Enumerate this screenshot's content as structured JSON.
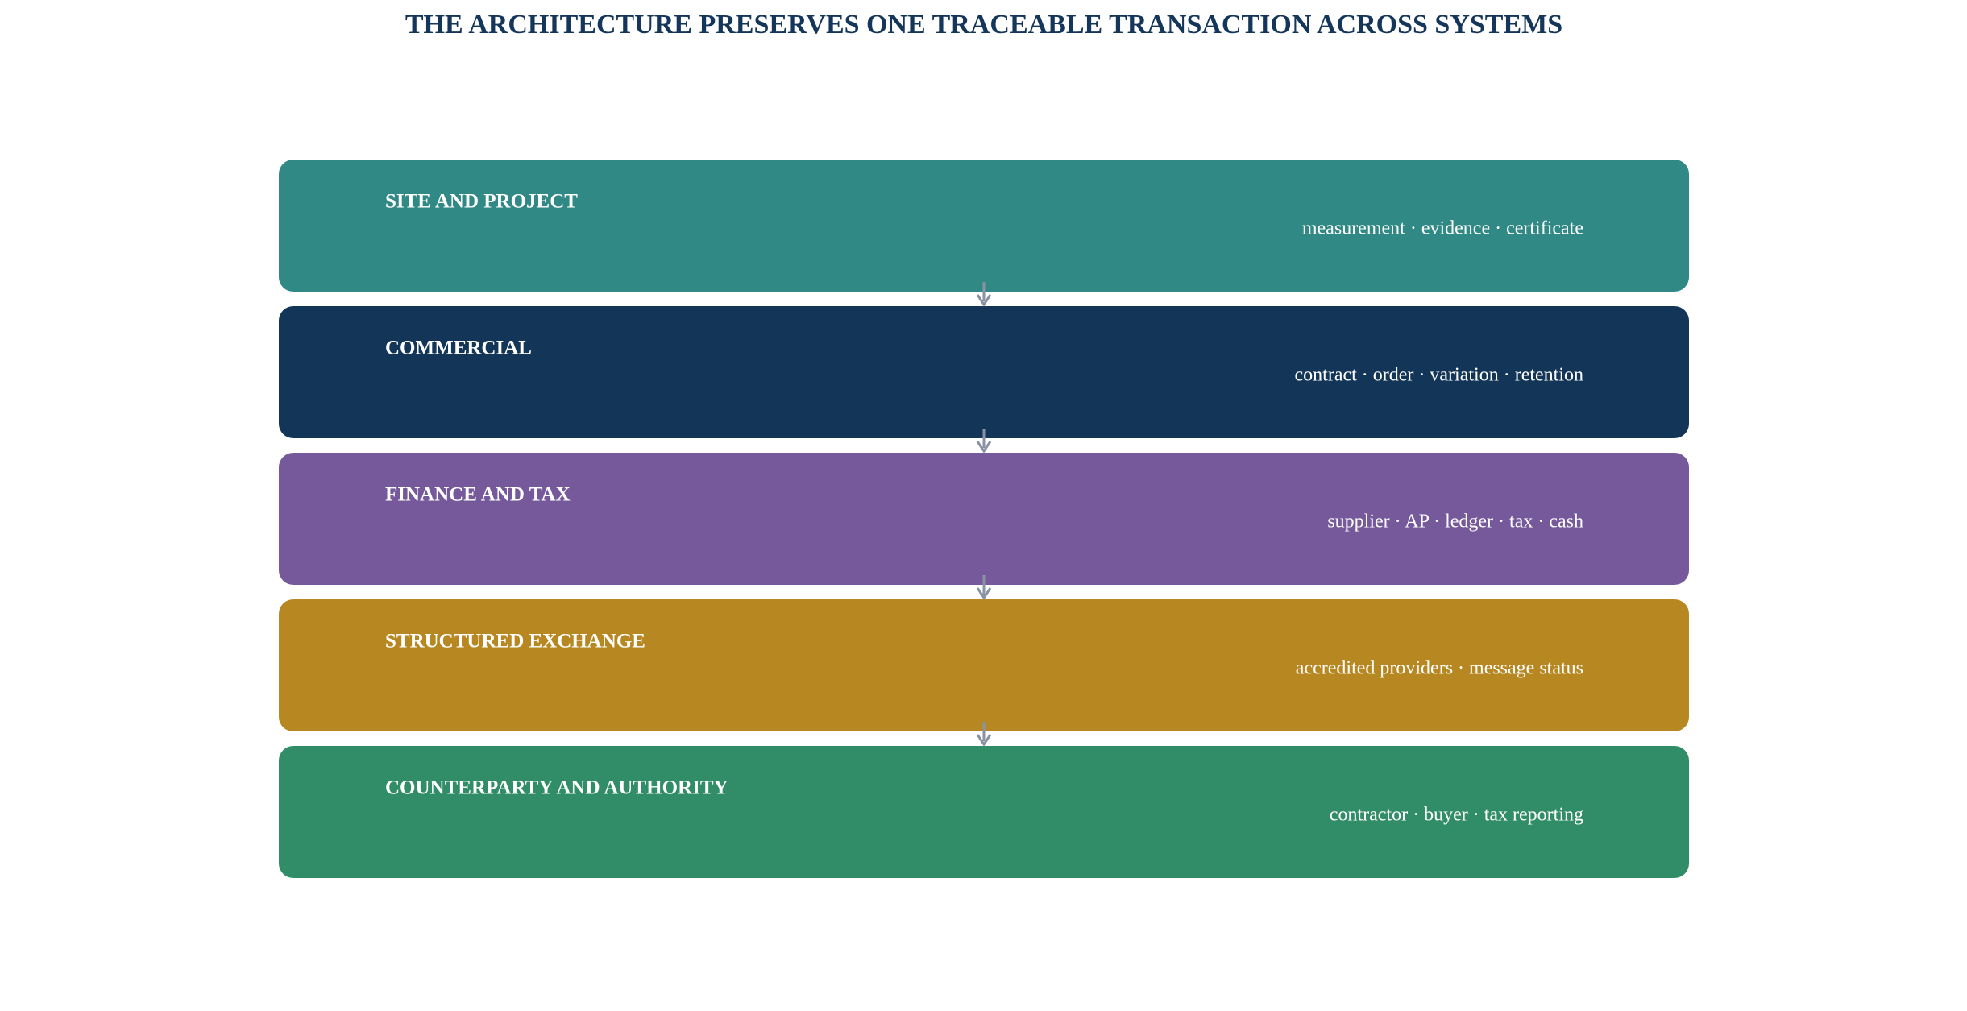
{
  "title": "THE ARCHITECTURE PRESERVES ONE TRACEABLE TRANSACTION ACROSS SYSTEMS",
  "layers": [
    {
      "label": "SITE AND PROJECT",
      "items": "measurement · evidence · certificate"
    },
    {
      "label": "COMMERCIAL",
      "items": "contract · order · variation · retention"
    },
    {
      "label": "FINANCE AND TAX",
      "items": "supplier · AP · ledger · tax · cash"
    },
    {
      "label": "STRUCTURED EXCHANGE",
      "items": "accredited providers · message status"
    },
    {
      "label": "COUNTERPARTY AND AUTHORITY",
      "items": "contractor · buyer · tax reporting"
    }
  ]
}
